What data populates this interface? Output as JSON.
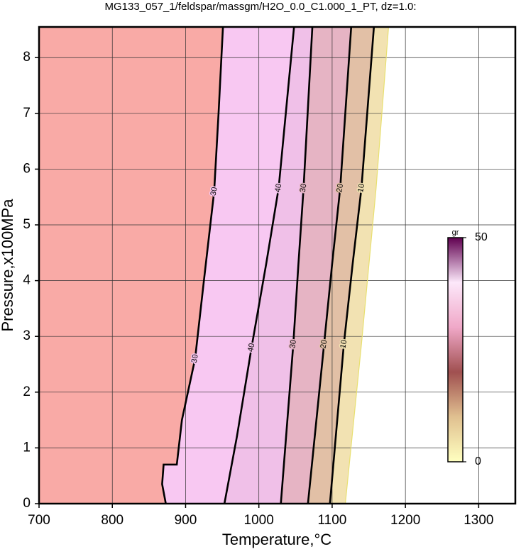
{
  "chart_data": {
    "type": "contour",
    "title": "MG133_057_1/feldspar/massgm/H2O_0.0_C1.000_1_PT, dz=1.0:",
    "xlabel": "Temperature,°C",
    "ylabel": "Pressure,x100MPa",
    "xlim": [
      700,
      1350
    ],
    "ylim": [
      0,
      8.55
    ],
    "xticks": [
      700,
      800,
      900,
      1000,
      1100,
      1200,
      1300
    ],
    "yticks": [
      0,
      1,
      2,
      3,
      4,
      5,
      6,
      7,
      8
    ],
    "grid": true,
    "background": "#f9aaa6",
    "contours": [
      {
        "level": 30,
        "color": "#000000",
        "fill": "#f8c8f2",
        "labels": true,
        "x": [
          873,
          868,
          870,
          888,
          895,
          913,
          925,
          939,
          945,
          951
        ],
        "y": [
          0,
          0.35,
          0.7,
          0.7,
          1.5,
          2.6,
          4,
          5.6,
          7,
          8.55
        ]
      },
      {
        "level": 40,
        "color": "#000000",
        "fill": "#f0c0e8",
        "labels": true,
        "x": [
          953,
          970,
          990,
          1010,
          1027,
          1048
        ],
        "y": [
          0,
          1.2,
          2.8,
          4.3,
          5.66,
          8.55
        ]
      },
      {
        "level": 30,
        "color": "#000000",
        "fill": "#e6b4c4",
        "labels": true,
        "x": [
          1030,
          1047,
          1054,
          1061,
          1073
        ],
        "y": [
          0,
          2.86,
          4.3,
          5.66,
          8.55
        ]
      },
      {
        "level": 20,
        "color": "#000000",
        "fill": "#e2c0a6",
        "labels": true,
        "x": [
          1067,
          1089,
          1100,
          1111,
          1126
        ],
        "y": [
          0,
          2.86,
          4.3,
          5.66,
          8.55
        ]
      },
      {
        "level": 10,
        "color": "#000000",
        "fill": "#f2e2b2",
        "labels": true,
        "x": [
          1097,
          1116,
          1128,
          1140,
          1157
        ],
        "y": [
          0,
          2.86,
          4.3,
          5.66,
          8.55
        ]
      },
      {
        "level": 0,
        "color": "#e8e070",
        "fill": "#ffffff",
        "labels": false,
        "x": [
          1118,
          1140,
          1160,
          1177
        ],
        "y": [
          0,
          2.86,
          5.66,
          8.55
        ]
      }
    ],
    "colorbar": {
      "label": "gr",
      "lim": [
        0,
        50
      ],
      "ticks": [
        0,
        50
      ],
      "colors": [
        "#ffffc0",
        "#e0c090",
        "#a05050",
        "#f0a8c8",
        "#fce8fa",
        "#600050"
      ]
    }
  }
}
